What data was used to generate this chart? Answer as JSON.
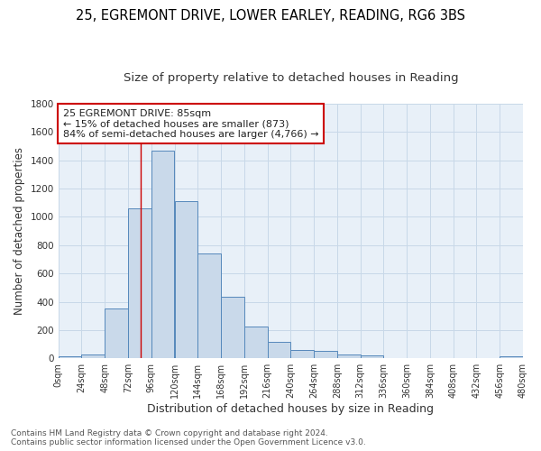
{
  "title1": "25, EGREMONT DRIVE, LOWER EARLEY, READING, RG6 3BS",
  "title2": "Size of property relative to detached houses in Reading",
  "xlabel": "Distribution of detached houses by size in Reading",
  "ylabel": "Number of detached properties",
  "footnote": "Contains HM Land Registry data © Crown copyright and database right 2024.\nContains public sector information licensed under the Open Government Licence v3.0.",
  "bar_edges": [
    0,
    24,
    48,
    72,
    96,
    120,
    144,
    168,
    192,
    216,
    240,
    264,
    288,
    312,
    336,
    360,
    384,
    408,
    432,
    456,
    480
  ],
  "bar_heights": [
    15,
    30,
    350,
    1060,
    1470,
    1110,
    740,
    435,
    225,
    120,
    60,
    50,
    30,
    20,
    5,
    5,
    5,
    5,
    5,
    15
  ],
  "bar_color": "#c9d9ea",
  "bar_edgecolor": "#5588bb",
  "bar_linewidth": 0.7,
  "redline_x": 85,
  "annotation_text": "25 EGREMONT DRIVE: 85sqm\n← 15% of detached houses are smaller (873)\n84% of semi-detached houses are larger (4,766) →",
  "annotation_box_color": "#ffffff",
  "annotation_box_edgecolor": "#cc0000",
  "ylim": [
    0,
    1800
  ],
  "xlim": [
    0,
    480
  ],
  "tick_positions": [
    0,
    24,
    48,
    72,
    96,
    120,
    144,
    168,
    192,
    216,
    240,
    264,
    288,
    312,
    336,
    360,
    384,
    408,
    432,
    456,
    480
  ],
  "tick_labels": [
    "0sqm",
    "24sqm",
    "48sqm",
    "72sqm",
    "96sqm",
    "120sqm",
    "144sqm",
    "168sqm",
    "192sqm",
    "216sqm",
    "240sqm",
    "264sqm",
    "288sqm",
    "312sqm",
    "336sqm",
    "360sqm",
    "384sqm",
    "408sqm",
    "432sqm",
    "456sqm",
    "480sqm"
  ],
  "ytick_positions": [
    0,
    200,
    400,
    600,
    800,
    1000,
    1200,
    1400,
    1600,
    1800
  ],
  "grid_color": "#c8d8e8",
  "bg_color": "#e8f0f8",
  "title1_fontsize": 10.5,
  "title2_fontsize": 9.5,
  "xlabel_fontsize": 9,
  "ylabel_fontsize": 8.5,
  "tick_fontsize": 7,
  "annotation_fontsize": 8,
  "footnote_fontsize": 6.5
}
